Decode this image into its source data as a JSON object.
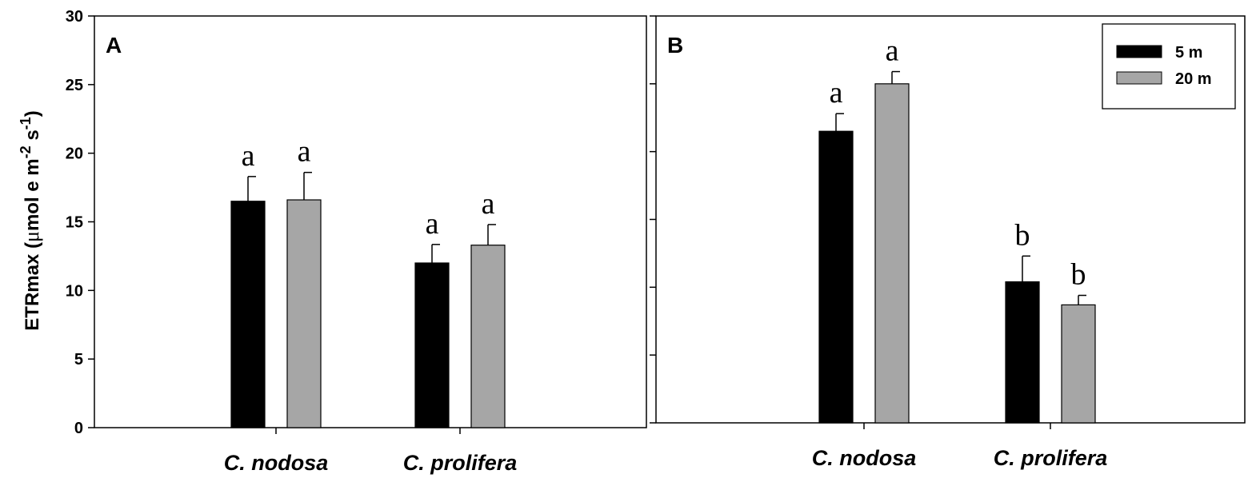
{
  "colors": {
    "s5": "#000000",
    "s20": "#a6a6a6"
  },
  "y_axis_label": {
    "main": "ETRmax (",
    "mu": "μ",
    "unit1": "mol e m",
    "exp1": "-2",
    "unit2": " s",
    "exp2": "-1",
    "close": ")"
  },
  "chart_data": [
    {
      "type": "bar",
      "panel_label": "A",
      "categories": [
        "C. nodosa",
        "C. prolifera"
      ],
      "ylim": [
        0,
        30
      ],
      "yticks": [
        0,
        5,
        10,
        15,
        20,
        25,
        30
      ],
      "show_tick_labels": true,
      "legend": false,
      "series": [
        {
          "name": "5 m",
          "color": "#000000",
          "values": [
            16.5,
            12.0
          ],
          "errors": [
            1.8,
            1.35
          ],
          "letters": [
            "a",
            "a"
          ]
        },
        {
          "name": "20 m",
          "color": "#a6a6a6",
          "values": [
            16.6,
            13.3
          ],
          "errors": [
            2.0,
            1.5
          ],
          "letters": [
            "a",
            "a"
          ]
        }
      ]
    },
    {
      "type": "bar",
      "panel_label": "B",
      "categories": [
        "C. nodosa",
        "C. prolifera"
      ],
      "ylim": [
        0,
        30
      ],
      "yticks": [
        0,
        5,
        10,
        15,
        20,
        25,
        30
      ],
      "show_tick_labels": false,
      "legend": true,
      "legend_position": "top-right",
      "series": [
        {
          "name": "5 m",
          "color": "#000000",
          "values": [
            21.5,
            10.4
          ],
          "errors": [
            1.3,
            1.9
          ],
          "letters": [
            "a",
            "b"
          ]
        },
        {
          "name": "20 m",
          "color": "#a6a6a6",
          "values": [
            25.0,
            8.7
          ],
          "errors": [
            0.9,
            0.7
          ],
          "letters": [
            "a",
            "b"
          ]
        }
      ]
    }
  ]
}
